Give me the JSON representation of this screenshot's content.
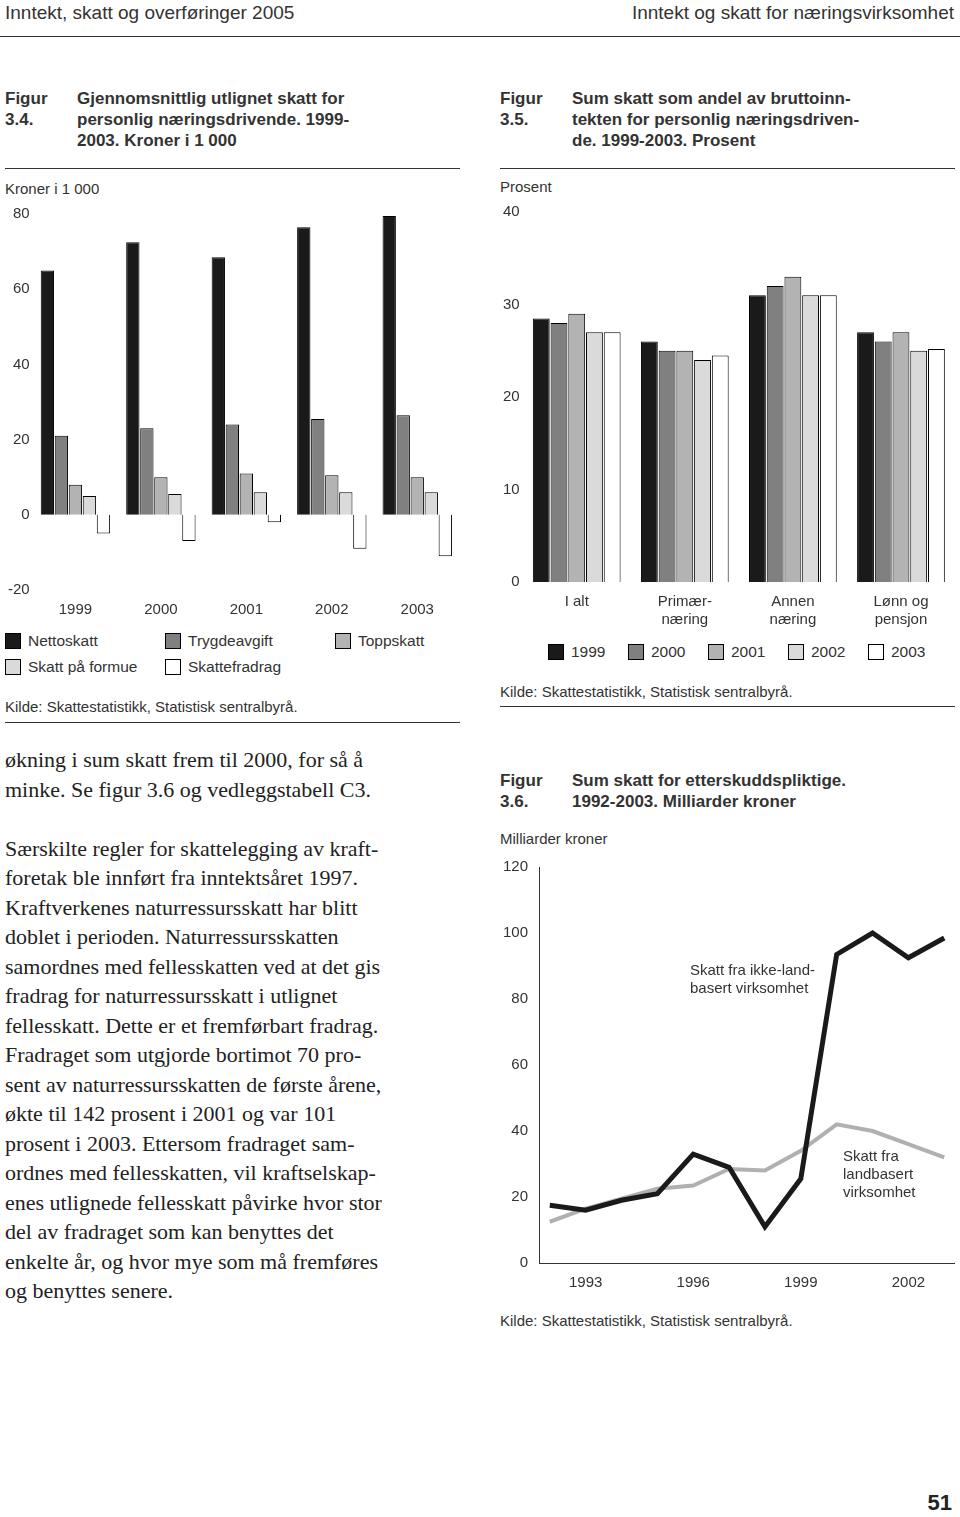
{
  "header": {
    "left": "Inntekt, skatt og overføringer 2005",
    "right": "Inntekt og skatt for næringsvirksomhet"
  },
  "body_text": [
    [
      "økning i sum skatt frem til 2000, for så å",
      "minke. Se figur 3.6 og vedleggstabell C3."
    ],
    [
      "Særskilte regler for skattelegging av kraft-",
      "foretak ble innført fra inntektsåret 1997.",
      "Kraftverkenes naturressursskatt har blitt",
      "doblet i perioden. Naturressursskatten",
      "samordnes med fellesskatten ved at det gis",
      "fradrag for naturressursskatt i utlignet",
      "fellesskatt. Dette er et fremførbart fradrag.",
      "Fradraget som utgjorde bortimot 70 pro-",
      "sent av naturressursskatten de første årene,",
      "økte til 142 prosent i 2001 og var 101",
      "prosent i 2003. Ettersom fradraget sam-",
      "ordnes med fellesskatten, vil kraftselskap-",
      "enes utlignede fellesskatt påvirke hvor stor",
      "del av fradraget som kan benyttes det",
      "enkelte år, og hvor mye som må fremføres",
      "og benyttes senere."
    ]
  ],
  "page_number": "51",
  "chart_data": [
    {
      "type": "bar",
      "figure_label": "Figur 3.4.",
      "title": [
        "Gjennomsnittlig utlignet skatt for",
        "personlig næringsdrivende. 1999-",
        "2003. Kroner i 1 000"
      ],
      "y_label": "Kroner i 1 000",
      "categories": [
        "1999",
        "2000",
        "2001",
        "2002",
        "2003"
      ],
      "series": [
        {
          "name": "Nettoskatt",
          "color": "#1a1a1a",
          "values": [
            65,
            72.5,
            68.5,
            76.5,
            79.5
          ]
        },
        {
          "name": "Trygdeavgift",
          "color": "#808080",
          "values": [
            21,
            23,
            24,
            25.5,
            26.5
          ]
        },
        {
          "name": "Toppskatt",
          "color": "#b3b3b3",
          "values": [
            8,
            10,
            11,
            10.5,
            10
          ]
        },
        {
          "name": "Skatt på formue",
          "color": "#dadada",
          "values": [
            5,
            5.5,
            6,
            6,
            6
          ]
        },
        {
          "name": "Skattefradrag",
          "color": "#ffffff",
          "values": [
            -5,
            -7,
            -2,
            -9,
            -11
          ]
        }
      ],
      "ylim": [
        -20,
        80
      ],
      "yticks": [
        -20,
        0,
        20,
        40,
        60,
        80
      ],
      "grid": false,
      "legend": "bottom",
      "source": "Kilde: Skattestatistikk, Statistisk sentralbyrå."
    },
    {
      "type": "bar",
      "figure_label": "Figur 3.5.",
      "title": [
        "Sum skatt som andel av bruttoinn-",
        "tekten for personlig næringsdriven-",
        "de. 1999-2003. Prosent"
      ],
      "y_label": "Prosent",
      "categories": [
        "I alt",
        "Primær-\nnæring",
        "Annen\nnæring",
        "Lønn og\npensjon"
      ],
      "series": [
        {
          "name": "1999",
          "color": "#1a1a1a",
          "values": [
            28.5,
            26,
            31,
            27
          ]
        },
        {
          "name": "2000",
          "color": "#808080",
          "values": [
            28,
            25,
            32,
            26
          ]
        },
        {
          "name": "2001",
          "color": "#b3b3b3",
          "values": [
            29,
            25,
            33,
            27
          ]
        },
        {
          "name": "2002",
          "color": "#dadada",
          "values": [
            27,
            24,
            31,
            25
          ]
        },
        {
          "name": "2003",
          "color": "#ffffff",
          "values": [
            27,
            24.5,
            31,
            25.2
          ]
        }
      ],
      "ylim": [
        0,
        40
      ],
      "yticks": [
        0,
        10,
        20,
        30,
        40
      ],
      "grid": false,
      "legend": "bottom",
      "source": "Kilde: Skattestatistikk, Statistisk sentralbyrå."
    },
    {
      "type": "line",
      "figure_label": "Figur 3.6.",
      "title": [
        "Sum skatt for etterskuddspliktige.",
        "1992-2003. Milliarder kroner"
      ],
      "y_label": "Milliarder kroner",
      "x": [
        1992,
        1993,
        1994,
        1995,
        1996,
        1997,
        1998,
        1999,
        2000,
        2001,
        2002,
        2003
      ],
      "series": [
        {
          "name": "Skatt fra ikke-land-\nbasert virksomhet",
          "color": "#1a1a1a",
          "values": [
            17.5,
            16,
            19,
            21,
            33,
            29,
            11,
            25.5,
            93.5,
            100,
            92.5,
            98.5
          ]
        },
        {
          "name": "Skatt fra\nlandbasert\nvirksomhet",
          "color": "#b0b0b0",
          "values": [
            12.5,
            16.5,
            19.5,
            22.5,
            23.5,
            28.5,
            28,
            34,
            42,
            40,
            36,
            32
          ]
        }
      ],
      "xlim": [
        1991.7,
        2003.3
      ],
      "xticks": [
        1993,
        1996,
        1999,
        2002
      ],
      "ylim": [
        0,
        120
      ],
      "yticks": [
        0,
        20,
        40,
        60,
        80,
        100,
        120
      ],
      "grid": false,
      "source": "Kilde: Skattestatistikk, Statistisk sentralbyrå."
    }
  ]
}
